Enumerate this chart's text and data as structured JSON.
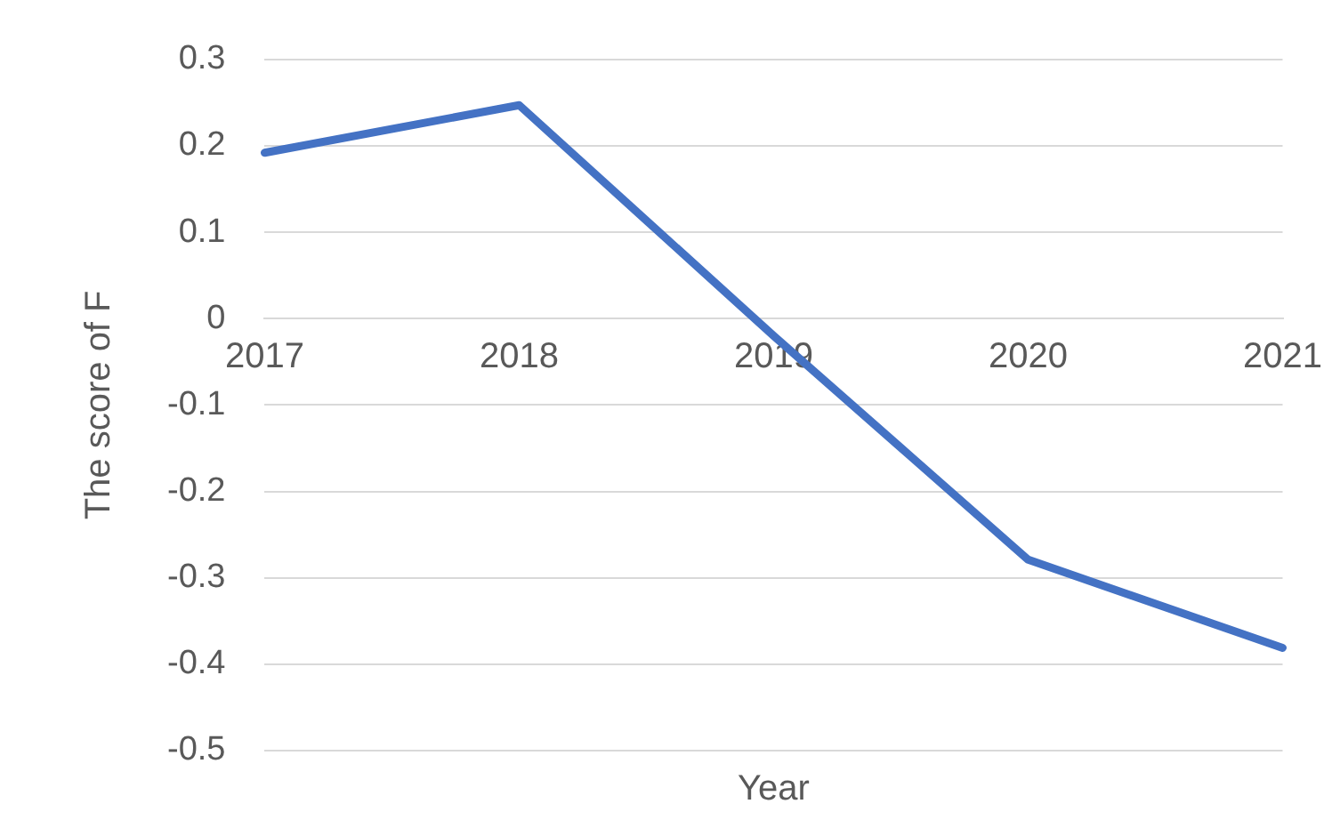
{
  "chart_data": {
    "type": "line",
    "xlabel": "Year",
    "ylabel": "The score of F",
    "categories": [
      "2017",
      "2018",
      "2019",
      "2020",
      "2021"
    ],
    "series": [
      {
        "color": "#4472c4",
        "values": [
          0.192,
          0.247,
          -0.02,
          -0.279,
          -0.381
        ]
      }
    ],
    "ylim": [
      -0.5,
      0.3
    ],
    "yticks": [
      -0.5,
      -0.4,
      -0.3,
      -0.2,
      -0.1,
      0,
      0.1,
      0.2,
      0.3
    ],
    "grid": "y",
    "legend": false,
    "marker": "none",
    "line_style": "solid"
  }
}
